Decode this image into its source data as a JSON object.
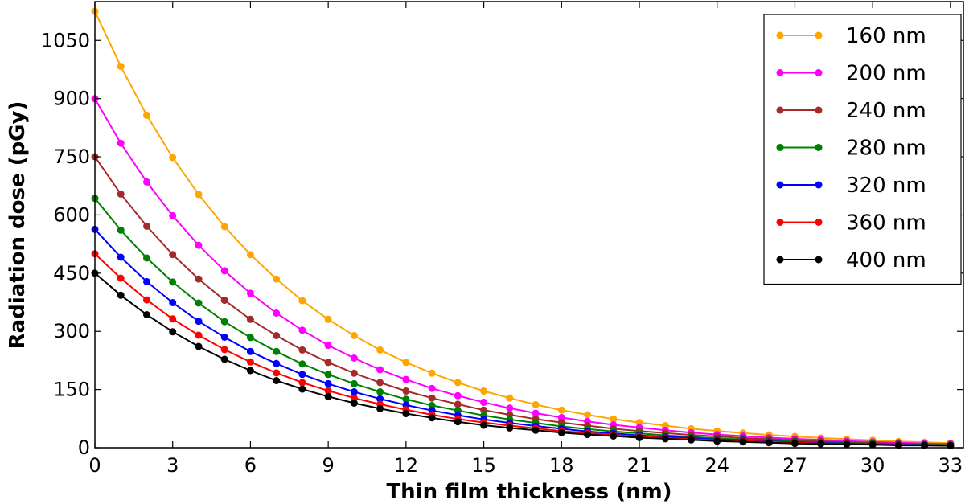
{
  "chart_data": {
    "type": "line",
    "title": "",
    "xlabel": "Thin film thickness (nm)",
    "ylabel": "Radiation dose (pGy)",
    "xlim": [
      0,
      33.5
    ],
    "ylim": [
      0,
      1150
    ],
    "xticks": [
      "0",
      "3",
      "6",
      "9",
      "12",
      "15",
      "18",
      "21",
      "24",
      "27",
      "30",
      "33"
    ],
    "yticks": [
      "0",
      "150",
      "300",
      "450",
      "600",
      "750",
      "900",
      "1050"
    ],
    "grid": false,
    "legend_position": "top-right",
    "x": [
      0,
      1,
      2,
      3,
      4,
      5,
      6,
      7,
      8,
      9,
      10,
      11,
      12,
      13,
      14,
      15,
      16,
      17,
      18,
      19,
      20,
      21,
      22,
      23,
      24,
      25,
      26,
      27,
      28,
      29,
      30,
      31,
      32,
      33
    ],
    "series": [
      {
        "name": "160 nm",
        "color": "#FFA500",
        "values": [
          1125,
          983,
          857,
          748,
          653,
          570,
          498,
          435,
          379,
          331,
          289,
          252,
          220,
          192,
          168,
          146,
          128,
          111,
          97,
          85,
          74,
          65,
          57,
          49,
          43,
          38,
          33,
          29,
          25,
          22,
          19,
          16,
          14,
          12
        ]
      },
      {
        "name": "200 nm",
        "color": "#FF00FF",
        "values": [
          900,
          785,
          685,
          598,
          522,
          456,
          398,
          347,
          303,
          264,
          231,
          201,
          176,
          153,
          134,
          117,
          102,
          89,
          78,
          68,
          59,
          52,
          45,
          39,
          34,
          30,
          26,
          23,
          20,
          17,
          15,
          13,
          11,
          10
        ]
      },
      {
        "name": "240 nm",
        "color": "#A52A2A",
        "values": [
          750,
          654,
          571,
          498,
          435,
          380,
          331,
          289,
          252,
          220,
          192,
          168,
          146,
          128,
          112,
          97,
          85,
          74,
          65,
          57,
          49,
          43,
          38,
          33,
          29,
          25,
          22,
          19,
          16,
          14,
          12,
          11,
          9,
          8
        ]
      },
      {
        "name": "280 nm",
        "color": "#008000",
        "values": [
          643,
          561,
          489,
          427,
          373,
          325,
          284,
          248,
          216,
          189,
          165,
          144,
          125,
          109,
          96,
          83,
          73,
          64,
          55,
          48,
          42,
          37,
          32,
          28,
          24,
          21,
          19,
          16,
          14,
          12,
          11,
          9,
          8,
          7
        ]
      },
      {
        "name": "320 nm",
        "color": "#0000FF",
        "values": [
          563,
          491,
          428,
          374,
          326,
          285,
          248,
          217,
          189,
          165,
          144,
          126,
          110,
          96,
          84,
          73,
          64,
          56,
          49,
          42,
          37,
          32,
          28,
          25,
          21,
          19,
          16,
          14,
          12,
          11,
          9,
          8,
          7,
          6
        ]
      },
      {
        "name": "360 nm",
        "color": "#FF0000",
        "values": [
          500,
          437,
          381,
          332,
          290,
          253,
          221,
          193,
          168,
          147,
          128,
          112,
          98,
          85,
          74,
          65,
          57,
          50,
          43,
          38,
          33,
          29,
          25,
          22,
          19,
          17,
          15,
          13,
          11,
          10,
          8,
          7,
          6,
          5
        ]
      },
      {
        "name": "400 nm",
        "color": "#000000",
        "values": [
          450,
          393,
          343,
          299,
          261,
          228,
          199,
          173,
          151,
          132,
          115,
          101,
          88,
          77,
          67,
          58,
          51,
          45,
          39,
          34,
          30,
          26,
          23,
          20,
          17,
          15,
          13,
          11,
          10,
          9,
          8,
          6,
          6,
          5
        ]
      }
    ]
  }
}
